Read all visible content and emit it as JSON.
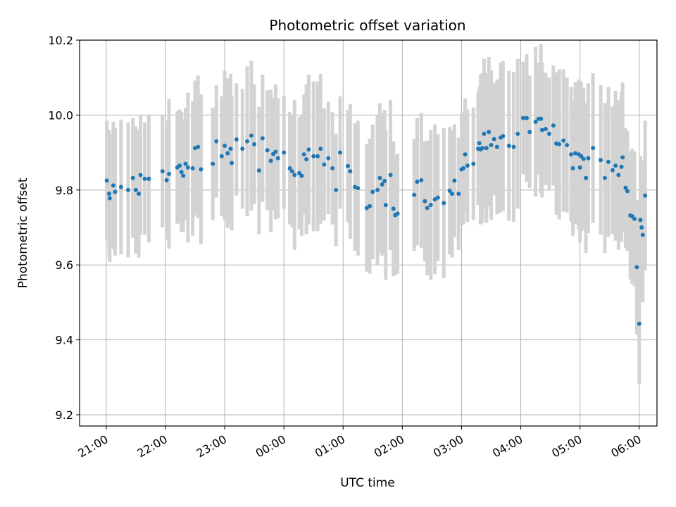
{
  "chart_data": {
    "type": "scatter",
    "title": "Photometric offset variation",
    "xlabel": "UTC time",
    "ylabel": "Photometric offset",
    "x_unit": "hours",
    "xlim": [
      20.55,
      30.3
    ],
    "ylim": [
      9.17,
      10.2
    ],
    "yticks": [
      9.2,
      9.4,
      9.6,
      9.8,
      10.0,
      10.2
    ],
    "xticks": [
      {
        "x": 21,
        "label": "21:00"
      },
      {
        "x": 22,
        "label": "22:00"
      },
      {
        "x": 23,
        "label": "23:00"
      },
      {
        "x": 24,
        "label": "00:00"
      },
      {
        "x": 25,
        "label": "01:00"
      },
      {
        "x": 26,
        "label": "02:00"
      },
      {
        "x": 27,
        "label": "03:00"
      },
      {
        "x": 28,
        "label": "04:00"
      },
      {
        "x": 29,
        "label": "05:00"
      },
      {
        "x": 30,
        "label": "06:00"
      }
    ],
    "grid": true,
    "marker_color": "#1f77b4",
    "errorbar_color": "#d3d3d3",
    "points": [
      [
        21.01,
        9.825,
        0.16
      ],
      [
        21.05,
        9.79,
        0.17
      ],
      [
        21.06,
        9.778,
        0.17
      ],
      [
        21.12,
        9.812,
        0.17
      ],
      [
        21.15,
        9.795,
        0.17
      ],
      [
        21.25,
        9.808,
        0.18
      ],
      [
        21.37,
        9.8,
        0.18
      ],
      [
        21.45,
        9.832,
        0.16
      ],
      [
        21.5,
        9.8,
        0.17
      ],
      [
        21.55,
        9.79,
        0.17
      ],
      [
        21.58,
        9.84,
        0.16
      ],
      [
        21.65,
        9.83,
        0.15
      ],
      [
        21.72,
        9.83,
        0.17
      ],
      [
        21.95,
        9.85,
        0.15
      ],
      [
        22.02,
        9.826,
        0.16
      ],
      [
        22.06,
        9.843,
        0.2
      ],
      [
        22.2,
        9.86,
        0.15
      ],
      [
        22.24,
        9.865,
        0.15
      ],
      [
        22.27,
        9.848,
        0.16
      ],
      [
        22.3,
        9.838,
        0.15
      ],
      [
        22.34,
        9.87,
        0.15
      ],
      [
        22.38,
        9.86,
        0.2
      ],
      [
        22.46,
        9.858,
        0.18
      ],
      [
        22.5,
        9.912,
        0.18
      ],
      [
        22.55,
        9.915,
        0.19
      ],
      [
        22.6,
        9.855,
        0.2
      ],
      [
        22.8,
        9.87,
        0.15
      ],
      [
        22.86,
        9.93,
        0.15
      ],
      [
        22.95,
        9.89,
        0.16
      ],
      [
        23.0,
        9.918,
        0.2
      ],
      [
        23.05,
        9.898,
        0.2
      ],
      [
        23.1,
        9.91,
        0.2
      ],
      [
        23.12,
        9.872,
        0.18
      ],
      [
        23.2,
        9.935,
        0.15
      ],
      [
        23.3,
        9.91,
        0.16
      ],
      [
        23.38,
        9.93,
        0.2
      ],
      [
        23.45,
        9.945,
        0.2
      ],
      [
        23.5,
        9.922,
        0.16
      ],
      [
        23.58,
        9.852,
        0.17
      ],
      [
        23.64,
        9.938,
        0.17
      ],
      [
        23.72,
        9.906,
        0.16
      ],
      [
        23.78,
        9.878,
        0.19
      ],
      [
        23.82,
        9.896,
        0.15
      ],
      [
        23.86,
        9.902,
        0.18
      ],
      [
        23.9,
        9.885,
        0.16
      ],
      [
        24.0,
        9.9,
        0.15
      ],
      [
        24.1,
        9.858,
        0.15
      ],
      [
        24.14,
        9.85,
        0.15
      ],
      [
        24.18,
        9.84,
        0.2
      ],
      [
        24.26,
        9.845,
        0.15
      ],
      [
        24.3,
        9.838,
        0.16
      ],
      [
        24.34,
        9.895,
        0.16
      ],
      [
        24.38,
        9.882,
        0.2
      ],
      [
        24.42,
        9.908,
        0.2
      ],
      [
        24.5,
        9.89,
        0.2
      ],
      [
        24.57,
        9.89,
        0.2
      ],
      [
        24.62,
        9.91,
        0.2
      ],
      [
        24.68,
        9.868,
        0.15
      ],
      [
        24.75,
        9.885,
        0.15
      ],
      [
        24.82,
        9.858,
        0.15
      ],
      [
        24.88,
        9.8,
        0.15
      ],
      [
        24.95,
        9.9,
        0.15
      ],
      [
        25.08,
        9.864,
        0.15
      ],
      [
        25.12,
        9.85,
        0.18
      ],
      [
        25.2,
        9.808,
        0.17
      ],
      [
        25.25,
        9.805,
        0.18
      ],
      [
        25.4,
        9.752,
        0.17
      ],
      [
        25.45,
        9.757,
        0.18
      ],
      [
        25.5,
        9.795,
        0.18
      ],
      [
        25.58,
        9.8,
        0.2
      ],
      [
        25.62,
        9.832,
        0.2
      ],
      [
        25.66,
        9.815,
        0.19
      ],
      [
        25.7,
        9.824,
        0.19
      ],
      [
        25.72,
        9.76,
        0.2
      ],
      [
        25.8,
        9.84,
        0.2
      ],
      [
        25.85,
        9.75,
        0.18
      ],
      [
        25.88,
        9.733,
        0.16
      ],
      [
        25.92,
        9.737,
        0.16
      ],
      [
        26.2,
        9.787,
        0.15
      ],
      [
        26.25,
        9.822,
        0.17
      ],
      [
        26.32,
        9.826,
        0.18
      ],
      [
        26.38,
        9.77,
        0.16
      ],
      [
        26.42,
        9.752,
        0.18
      ],
      [
        26.48,
        9.76,
        0.2
      ],
      [
        26.55,
        9.775,
        0.2
      ],
      [
        26.6,
        9.78,
        0.17
      ],
      [
        26.7,
        9.765,
        0.2
      ],
      [
        26.8,
        9.798,
        0.17
      ],
      [
        26.84,
        9.79,
        0.17
      ],
      [
        26.88,
        9.825,
        0.15
      ],
      [
        26.95,
        9.79,
        0.15
      ],
      [
        27.0,
        9.855,
        0.15
      ],
      [
        27.03,
        9.858,
        0.15
      ],
      [
        27.06,
        9.895,
        0.15
      ],
      [
        27.1,
        9.865,
        0.15
      ],
      [
        27.2,
        9.87,
        0.15
      ],
      [
        27.28,
        9.91,
        0.15
      ],
      [
        27.3,
        9.925,
        0.15
      ],
      [
        27.32,
        9.908,
        0.2
      ],
      [
        27.35,
        9.912,
        0.2
      ],
      [
        27.38,
        9.95,
        0.2
      ],
      [
        27.42,
        9.912,
        0.2
      ],
      [
        27.46,
        9.955,
        0.2
      ],
      [
        27.5,
        9.92,
        0.2
      ],
      [
        27.55,
        9.936,
        0.15
      ],
      [
        27.6,
        9.915,
        0.18
      ],
      [
        27.66,
        9.94,
        0.2
      ],
      [
        27.7,
        9.944,
        0.2
      ],
      [
        27.8,
        9.918,
        0.2
      ],
      [
        27.88,
        9.915,
        0.2
      ],
      [
        27.95,
        9.95,
        0.2
      ],
      [
        28.04,
        9.992,
        0.15
      ],
      [
        28.1,
        9.992,
        0.17
      ],
      [
        28.15,
        9.955,
        0.15
      ],
      [
        28.25,
        9.982,
        0.2
      ],
      [
        28.3,
        9.99,
        0.15
      ],
      [
        28.34,
        9.99,
        0.2
      ],
      [
        28.36,
        9.96,
        0.18
      ],
      [
        28.42,
        9.963,
        0.15
      ],
      [
        28.48,
        9.95,
        0.15
      ],
      [
        28.55,
        9.972,
        0.16
      ],
      [
        28.6,
        9.924,
        0.19
      ],
      [
        28.65,
        9.922,
        0.2
      ],
      [
        28.72,
        9.932,
        0.19
      ],
      [
        28.78,
        9.92,
        0.18
      ],
      [
        28.85,
        9.895,
        0.18
      ],
      [
        28.88,
        9.858,
        0.18
      ],
      [
        28.92,
        9.898,
        0.19
      ],
      [
        28.98,
        9.895,
        0.2
      ],
      [
        29.0,
        9.86,
        0.2
      ],
      [
        29.02,
        9.89,
        0.2
      ],
      [
        29.06,
        9.883,
        0.19
      ],
      [
        29.1,
        9.832,
        0.2
      ],
      [
        29.14,
        9.885,
        0.2
      ],
      [
        29.22,
        9.912,
        0.2
      ],
      [
        29.35,
        9.88,
        0.2
      ],
      [
        29.42,
        9.832,
        0.2
      ],
      [
        29.48,
        9.875,
        0.2
      ],
      [
        29.55,
        9.853,
        0.17
      ],
      [
        29.6,
        9.865,
        0.2
      ],
      [
        29.65,
        9.84,
        0.2
      ],
      [
        29.7,
        9.862,
        0.2
      ],
      [
        29.72,
        9.887,
        0.2
      ],
      [
        29.77,
        9.806,
        0.16
      ],
      [
        29.8,
        9.797,
        0.16
      ],
      [
        29.85,
        9.732,
        0.17
      ],
      [
        29.88,
        9.73,
        0.18
      ],
      [
        29.92,
        9.723,
        0.18
      ],
      [
        29.96,
        9.594,
        0.18
      ],
      [
        30.0,
        9.443,
        0.16
      ],
      [
        30.02,
        9.72,
        0.17
      ],
      [
        30.04,
        9.7,
        0.18
      ],
      [
        30.06,
        9.68,
        0.18
      ],
      [
        30.1,
        9.785,
        0.2
      ]
    ]
  }
}
